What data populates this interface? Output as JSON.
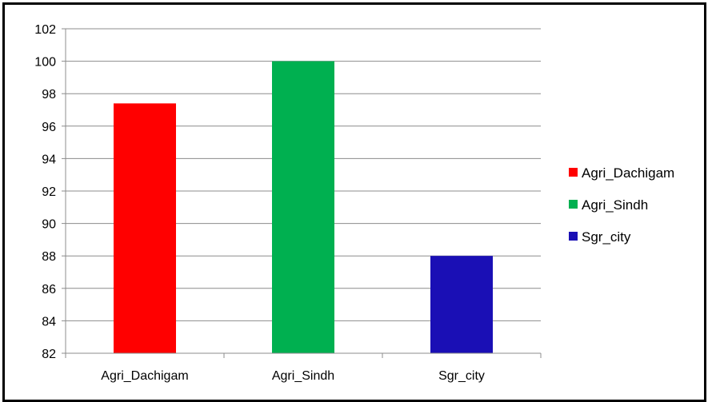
{
  "chart_data": {
    "type": "bar",
    "categories": [
      "Agri_Dachigam",
      "Agri_Sindh",
      "Sgr_city"
    ],
    "values": [
      97.4,
      100,
      88
    ],
    "colors": [
      "#ff0000",
      "#00b050",
      "#1a0fb5"
    ],
    "ylim": [
      82,
      102
    ],
    "yticks": [
      82,
      84,
      86,
      88,
      90,
      92,
      94,
      96,
      98,
      100,
      102
    ],
    "grid": true,
    "legend": {
      "placement": "right",
      "entries": [
        "Agri_Dachigam",
        "Agri_Sindh",
        "Sgr_city"
      ]
    },
    "title": "",
    "xlabel": "",
    "ylabel": ""
  }
}
